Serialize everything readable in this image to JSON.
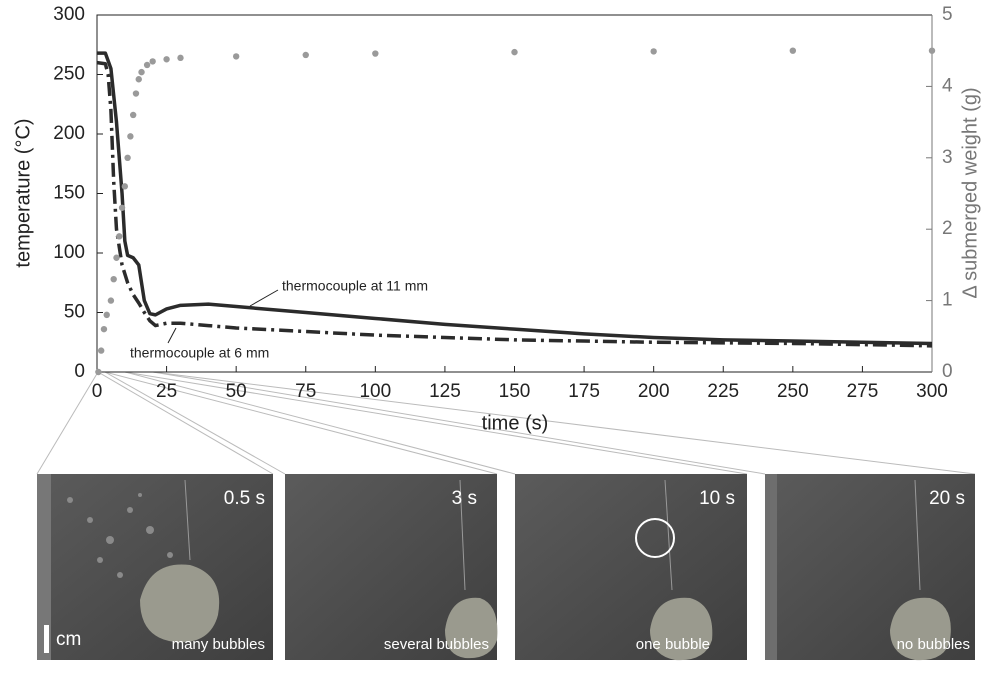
{
  "chart_data": {
    "type": "line",
    "xlabel": "time (s)",
    "ylabel": "temperature (°C)",
    "y2label": "Δ submerged weight (g)",
    "xlim": [
      0,
      300
    ],
    "xticks": [
      0,
      25,
      50,
      75,
      100,
      125,
      150,
      175,
      200,
      225,
      250,
      275,
      300
    ],
    "ylim": [
      0,
      300
    ],
    "yticks": [
      0,
      50,
      100,
      150,
      200,
      250,
      300
    ],
    "y2lim": [
      0,
      5
    ],
    "y2ticks": [
      0,
      1,
      2,
      3,
      4,
      5
    ],
    "series": [
      {
        "name": "thermocouple at 11 mm",
        "color": "#2b2b2b",
        "style": "solid",
        "x": [
          0,
          3,
          5,
          7,
          9,
          10,
          11,
          13,
          15,
          17,
          19,
          21,
          25,
          30,
          40,
          50,
          75,
          100,
          125,
          150,
          175,
          200,
          225,
          250,
          275,
          300
        ],
        "values": [
          268,
          268,
          255,
          210,
          150,
          110,
          98,
          96,
          90,
          60,
          49,
          48,
          53,
          56,
          57,
          55,
          50,
          45,
          40,
          36,
          32,
          29,
          27,
          26,
          25,
          24
        ]
      },
      {
        "name": "thermocouple at 6 mm",
        "color": "#2b2b2b",
        "style": "dashdot",
        "x": [
          0,
          3,
          4,
          5,
          6,
          7,
          9,
          11,
          13,
          15,
          17,
          19,
          21,
          25,
          30,
          40,
          50,
          75,
          100,
          125,
          150,
          175,
          200,
          250,
          300
        ],
        "values": [
          260,
          259,
          250,
          220,
          160,
          120,
          90,
          75,
          65,
          58,
          50,
          43,
          39,
          41,
          41,
          39,
          37,
          34,
          31,
          29,
          27,
          26,
          25,
          24,
          22
        ]
      },
      {
        "color": "#9a9a9a",
        "style": "dots",
        "axis": "y2",
        "x": [
          0.5,
          1.5,
          2.5,
          3.5,
          5,
          6,
          7,
          8,
          9,
          10,
          11,
          12,
          13,
          14,
          15,
          16,
          18,
          20,
          25,
          30,
          50,
          75,
          100,
          150,
          200,
          250,
          300
        ],
        "values": [
          0,
          0.3,
          0.6,
          0.8,
          1.0,
          1.3,
          1.6,
          1.9,
          2.3,
          2.6,
          3.0,
          3.3,
          3.6,
          3.9,
          4.1,
          4.2,
          4.3,
          4.35,
          4.38,
          4.4,
          4.42,
          4.44,
          4.46,
          4.48,
          4.49,
          4.5,
          4.5
        ]
      }
    ]
  },
  "panels": [
    {
      "label": "0.5 s",
      "caption": "many bubbles"
    },
    {
      "label": "3 s",
      "caption": "several bubbles"
    },
    {
      "label": "10 s",
      "caption": "one bubble"
    },
    {
      "label": "20 s",
      "caption": "no bubbles"
    }
  ],
  "scale_label": "cm"
}
